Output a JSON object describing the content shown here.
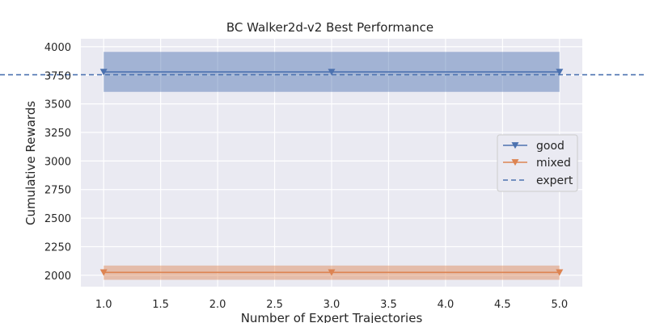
{
  "chart_data": {
    "type": "line",
    "title": "BC Walker2d-v2 Best Performance",
    "xlabel": "Number of Expert Trajectories",
    "ylabel": "Cumulative Rewards",
    "xlim": [
      0.8,
      5.2
    ],
    "ylim": [
      1900,
      4070
    ],
    "xticks": [
      1.0,
      1.5,
      2.0,
      2.5,
      3.0,
      3.5,
      4.0,
      4.5,
      5.0
    ],
    "xtick_labels": [
      "1.0",
      "1.5",
      "2.0",
      "2.5",
      "3.0",
      "3.5",
      "4.0",
      "4.5",
      "5.0"
    ],
    "yticks": [
      2000,
      2250,
      2500,
      2750,
      3000,
      3250,
      3500,
      3750,
      4000
    ],
    "ytick_labels": [
      "2000",
      "2250",
      "2500",
      "2750",
      "3000",
      "3250",
      "3500",
      "3750",
      "4000"
    ],
    "grid": true,
    "legend_position": "right",
    "series": [
      {
        "name": "good",
        "color": "#4c72b0",
        "marker": "triangle-down",
        "x": [
          1,
          3,
          5
        ],
        "y": [
          3780,
          3780,
          3780
        ],
        "band_low": [
          3605,
          3605,
          3605
        ],
        "band_high": [
          3955,
          3955,
          3955
        ]
      },
      {
        "name": "mixed",
        "color": "#dd8452",
        "marker": "triangle-down",
        "x": [
          1,
          3,
          5
        ],
        "y": [
          2025,
          2025,
          2025
        ],
        "band_low": [
          1960,
          1960,
          1960
        ],
        "band_high": [
          2085,
          2085,
          2085
        ]
      }
    ],
    "reference_lines": [
      {
        "name": "expert",
        "color": "#4c72b0",
        "style": "dashed",
        "y": 3755
      }
    ]
  }
}
